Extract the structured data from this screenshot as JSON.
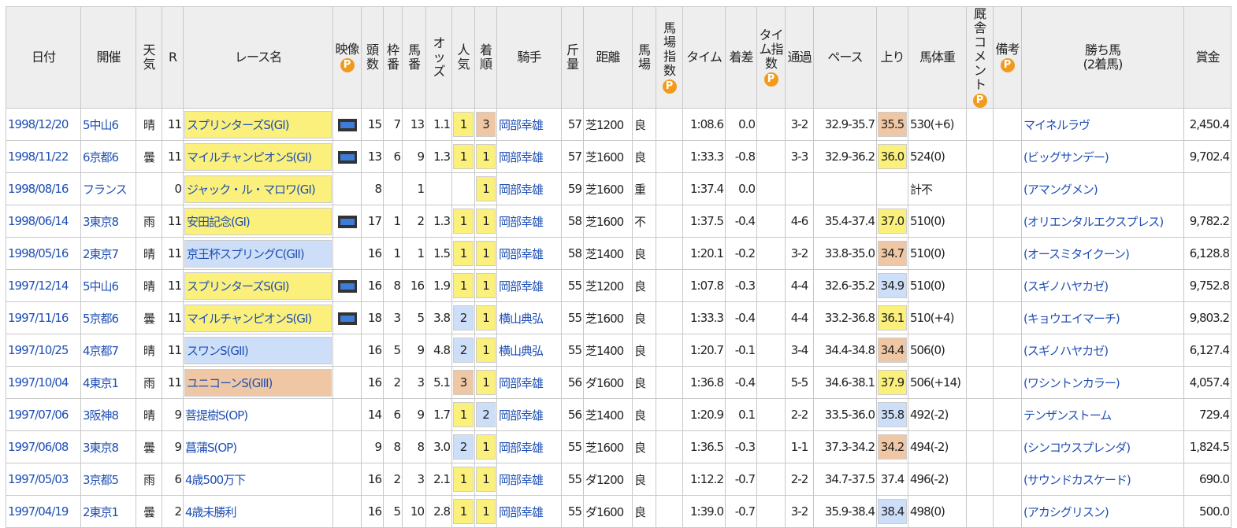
{
  "table": {
    "header": [
      "日付",
      "開催",
      "天気",
      "R",
      "レース名",
      "映像",
      "頭数",
      "枠番",
      "馬番",
      "オッズ",
      "人気",
      "着順",
      "騎手",
      "斤量",
      "距離",
      "馬場",
      "馬場指数",
      "タイム",
      "着差",
      "タイム指数",
      "通過",
      "ペース",
      "上り",
      "馬体重",
      "厩舎コメント",
      "備考",
      "勝ち馬\n(2着馬)",
      "賞金"
    ],
    "rank_colors": {
      "1": "#fbf07c",
      "2": "#cddff8",
      "3": "#efc7a4"
    },
    "rows": [
      {
        "race_color": "#fbf07c",
        "agari_color": "#efc7a4",
        "cells": [
          "1998/12/20",
          "5中山6",
          "晴",
          "11",
          "スプリンターズS(GI)",
          true,
          "15",
          "7",
          "13",
          "1.1",
          "1",
          "3",
          "岡部幸雄",
          "57",
          "芝1200",
          "良",
          null,
          "1:08.6",
          "0.0",
          null,
          "3-2",
          "32.9-35.7",
          "35.5",
          "530(+6)",
          null,
          null,
          "マイネルラヴ",
          "2,450.4"
        ]
      },
      {
        "race_color": "#fbf07c",
        "agari_color": "#fbf07c",
        "cells": [
          "1998/11/22",
          "6京都6",
          "曇",
          "11",
          "マイルチャンピオンS(GI)",
          true,
          "13",
          "6",
          "9",
          "1.3",
          "1",
          "1",
          "岡部幸雄",
          "57",
          "芝1600",
          "良",
          null,
          "1:33.3",
          "-0.8",
          null,
          "3-3",
          "32.9-36.2",
          "36.0",
          "524(0)",
          null,
          null,
          "(ビッグサンデー)",
          "9,702.4"
        ]
      },
      {
        "race_color": "#fbf07c",
        "agari_color": null,
        "cells": [
          "1998/08/16",
          "フランス",
          null,
          "0",
          "ジャック・ル・マロワ(GI)",
          false,
          "8",
          null,
          "1",
          null,
          null,
          "1",
          "岡部幸雄",
          "59",
          "芝1600",
          "重",
          null,
          "1:37.4",
          "0.0",
          null,
          null,
          null,
          null,
          "計不",
          null,
          null,
          "(アマングメン)",
          null
        ]
      },
      {
        "race_color": "#fbf07c",
        "agari_color": "#fbf07c",
        "cells": [
          "1998/06/14",
          "3東京8",
          "雨",
          "11",
          "安田記念(GI)",
          true,
          "17",
          "1",
          "2",
          "1.3",
          "1",
          "1",
          "岡部幸雄",
          "58",
          "芝1600",
          "不",
          null,
          "1:37.5",
          "-0.4",
          null,
          "4-6",
          "35.4-37.4",
          "37.0",
          "510(0)",
          null,
          null,
          "(オリエンタルエクスプレス)",
          "9,782.2"
        ]
      },
      {
        "race_color": "#cddff8",
        "agari_color": "#efc7a4",
        "cells": [
          "1998/05/16",
          "2東京7",
          "晴",
          "11",
          "京王杯スプリングC(GII)",
          false,
          "16",
          "1",
          "1",
          "1.5",
          "1",
          "1",
          "岡部幸雄",
          "58",
          "芝1400",
          "良",
          null,
          "1:20.1",
          "-0.2",
          null,
          "3-2",
          "33.8-35.0",
          "34.7",
          "510(0)",
          null,
          null,
          "(オースミタイクーン)",
          "6,128.8"
        ]
      },
      {
        "race_color": "#fbf07c",
        "agari_color": "#cddff8",
        "cells": [
          "1997/12/14",
          "5中山6",
          "晴",
          "11",
          "スプリンターズS(GI)",
          true,
          "16",
          "8",
          "16",
          "1.9",
          "1",
          "1",
          "岡部幸雄",
          "55",
          "芝1200",
          "良",
          null,
          "1:07.8",
          "-0.3",
          null,
          "4-4",
          "32.6-35.2",
          "34.9",
          "510(0)",
          null,
          null,
          "(スギノハヤカゼ)",
          "9,752.8"
        ]
      },
      {
        "race_color": "#fbf07c",
        "agari_color": "#fbf07c",
        "cells": [
          "1997/11/16",
          "5京都6",
          "曇",
          "11",
          "マイルチャンピオンS(GI)",
          true,
          "18",
          "3",
          "5",
          "3.8",
          "2",
          "1",
          "横山典弘",
          "55",
          "芝1600",
          "良",
          null,
          "1:33.3",
          "-0.4",
          null,
          "4-4",
          "33.2-36.8",
          "36.1",
          "510(+4)",
          null,
          null,
          "(キョウエイマーチ)",
          "9,803.2"
        ]
      },
      {
        "race_color": "#cddff8",
        "agari_color": "#efc7a4",
        "cells": [
          "1997/10/25",
          "4京都7",
          "晴",
          "11",
          "スワンS(GII)",
          false,
          "16",
          "5",
          "9",
          "4.8",
          "2",
          "1",
          "横山典弘",
          "55",
          "芝1400",
          "良",
          null,
          "1:20.7",
          "-0.1",
          null,
          "3-4",
          "34.4-34.8",
          "34.4",
          "506(0)",
          null,
          null,
          "(スギノハヤカゼ)",
          "6,127.4"
        ]
      },
      {
        "race_color": "#efc7a4",
        "agari_color": "#fbf07c",
        "cells": [
          "1997/10/04",
          "4東京1",
          "雨",
          "11",
          "ユニコーンS(GIII)",
          false,
          "16",
          "2",
          "3",
          "5.1",
          "3",
          "1",
          "岡部幸雄",
          "56",
          "ダ1600",
          "良",
          null,
          "1:36.8",
          "-0.4",
          null,
          "5-5",
          "34.6-38.1",
          "37.9",
          "506(+14)",
          null,
          null,
          "(ワシントンカラー)",
          "4,057.4"
        ]
      },
      {
        "race_color": null,
        "agari_color": "#cddff8",
        "cells": [
          "1997/07/06",
          "3阪神8",
          "晴",
          "9",
          "菩提樹S(OP)",
          false,
          "14",
          "6",
          "9",
          "1.7",
          "1",
          "2",
          "岡部幸雄",
          "56",
          "芝1400",
          "良",
          null,
          "1:20.9",
          "0.1",
          null,
          "2-2",
          "33.5-36.0",
          "35.8",
          "492(-2)",
          null,
          null,
          "テンザンストーム",
          "729.4"
        ]
      },
      {
        "race_color": null,
        "agari_color": "#efc7a4",
        "cells": [
          "1997/06/08",
          "3東京8",
          "曇",
          "9",
          "菖蒲S(OP)",
          false,
          "9",
          "8",
          "8",
          "3.0",
          "2",
          "1",
          "岡部幸雄",
          "55",
          "芝1600",
          "良",
          null,
          "1:36.5",
          "-0.3",
          null,
          "1-1",
          "37.3-34.2",
          "34.2",
          "494(-2)",
          null,
          null,
          "(シンコウスプレンダ)",
          "1,824.5"
        ]
      },
      {
        "race_color": null,
        "agari_color": null,
        "cells": [
          "1997/05/03",
          "3京都5",
          "雨",
          "6",
          "4歳500万下",
          false,
          "16",
          "2",
          "3",
          "2.1",
          "1",
          "1",
          "岡部幸雄",
          "55",
          "ダ1200",
          "良",
          null,
          "1:12.2",
          "-0.7",
          null,
          "2-2",
          "34.7-37.5",
          "37.4",
          "496(-2)",
          null,
          null,
          "(サウンドカスケード)",
          "690.0"
        ]
      },
      {
        "race_color": null,
        "agari_color": "#cddff8",
        "cells": [
          "1997/04/19",
          "2東京1",
          "曇",
          "2",
          "4歳未勝利",
          false,
          "16",
          "5",
          "10",
          "2.8",
          "1",
          "1",
          "岡部幸雄",
          "55",
          "ダ1600",
          "良",
          null,
          "1:39.0",
          "-0.7",
          null,
          "3-2",
          "35.9-38.4",
          "38.4",
          "498(0)",
          null,
          null,
          "(アカシグリスン)",
          "500.0"
        ]
      }
    ]
  }
}
